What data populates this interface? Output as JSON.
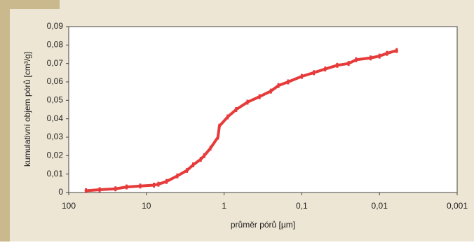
{
  "chart_data": {
    "type": "line",
    "x_label": "průměr pórů [µm]",
    "y_label": "kumulativní objem pórů [cm³/g]",
    "x_scale": "log",
    "xlim": [
      100,
      0.001
    ],
    "xticks": [
      100,
      10,
      1,
      {
        "value": 0.1,
        "label": "0,1"
      },
      {
        "value": 0.01,
        "label": "0,01"
      },
      {
        "value": 0.001,
        "label": "0,001"
      }
    ],
    "ylim": [
      0,
      0.09
    ],
    "yticks": [
      0,
      {
        "value": 0.01,
        "label": "0,01"
      },
      {
        "value": 0.02,
        "label": "0,02"
      },
      {
        "value": 0.03,
        "label": "0,03"
      },
      {
        "value": 0.04,
        "label": "0,04"
      },
      {
        "value": 0.05,
        "label": "0,05"
      },
      {
        "value": 0.06,
        "label": "0,06"
      },
      {
        "value": 0.07,
        "label": "0,07"
      },
      {
        "value": 0.08,
        "label": "0,08"
      },
      {
        "value": 0.09,
        "label": "0,09"
      }
    ],
    "x": [
      60,
      40,
      25,
      18,
      12,
      8,
      7,
      5.5,
      4,
      3,
      2.5,
      2,
      1.8,
      1.5,
      1.2,
      1.15,
      0.9,
      0.7,
      0.5,
      0.35,
      0.25,
      0.2,
      0.15,
      0.1,
      0.07,
      0.05,
      0.035,
      0.025,
      0.02,
      0.013,
      0.01,
      0.008,
      0.006
    ],
    "series": [
      {
        "color": "#e63b3b",
        "values": [
          0.001,
          0.0015,
          0.002,
          0.003,
          0.0035,
          0.004,
          0.0045,
          0.006,
          0.009,
          0.012,
          0.015,
          0.018,
          0.02,
          0.024,
          0.03,
          0.036,
          0.041,
          0.045,
          0.049,
          0.052,
          0.055,
          0.058,
          0.06,
          0.063,
          0.065,
          0.067,
          0.069,
          0.07,
          0.072,
          0.073,
          0.074,
          0.0755,
          0.077
        ]
      }
    ]
  }
}
